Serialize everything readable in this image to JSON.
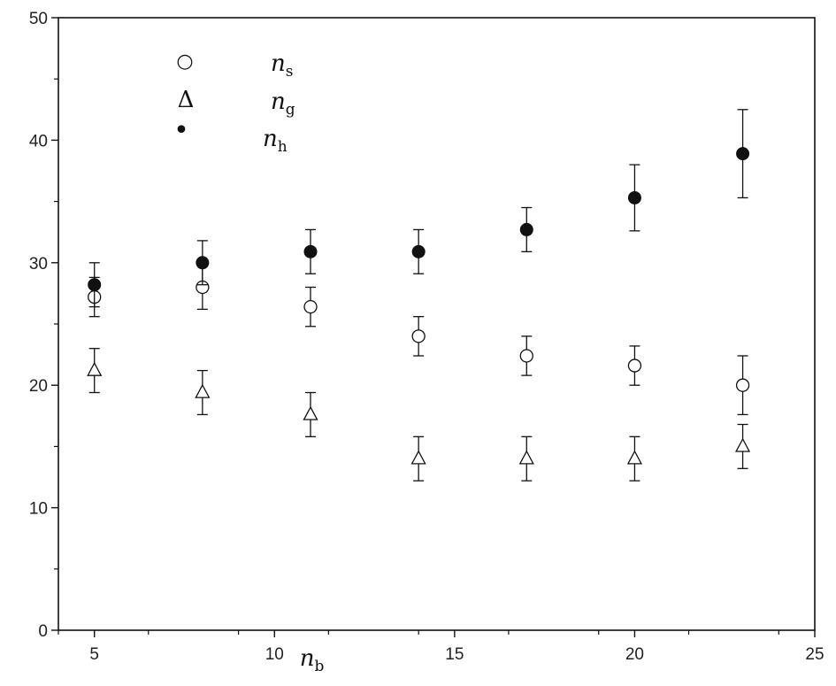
{
  "chart_data": {
    "type": "scatter",
    "xlim": [
      4,
      25
    ],
    "ylim": [
      0,
      50
    ],
    "x_ticks": [
      5,
      10,
      15,
      20,
      25
    ],
    "y_ticks": [
      0,
      10,
      20,
      30,
      40,
      50
    ],
    "x_tick_labels": [
      "5",
      "10",
      "15",
      "20",
      "25"
    ],
    "y_tick_labels": [
      "0",
      "10",
      "20",
      "30",
      "40",
      "50"
    ],
    "xlabel": {
      "main": "n",
      "sub": "b"
    },
    "ylabel": "",
    "grid": false,
    "legend_position": "top-left",
    "x": [
      5,
      8,
      11,
      14,
      17,
      20,
      23
    ],
    "series": [
      {
        "name": {
          "main": "n",
          "sub": "s"
        },
        "legend_symbol": "○",
        "marker": "open-circle",
        "values": [
          27.2,
          28.0,
          26.4,
          24.0,
          22.4,
          21.6,
          20.0
        ],
        "errors": [
          1.6,
          1.8,
          1.6,
          1.6,
          1.6,
          1.6,
          2.4
        ]
      },
      {
        "name": {
          "main": "n",
          "sub": "g"
        },
        "legend_symbol": "Δ",
        "marker": "open-triangle",
        "values": [
          21.2,
          19.4,
          17.6,
          14.0,
          14.0,
          14.0,
          15.0
        ],
        "errors": [
          1.8,
          1.8,
          1.8,
          1.8,
          1.8,
          1.8,
          1.8
        ]
      },
      {
        "name": {
          "main": "n",
          "sub": "h"
        },
        "legend_symbol": "•",
        "marker": "filled-circle",
        "values": [
          28.2,
          30.0,
          30.9,
          30.9,
          32.7,
          35.3,
          38.9
        ],
        "errors": [
          1.8,
          1.8,
          1.8,
          1.8,
          1.8,
          2.7,
          3.6
        ]
      }
    ]
  }
}
